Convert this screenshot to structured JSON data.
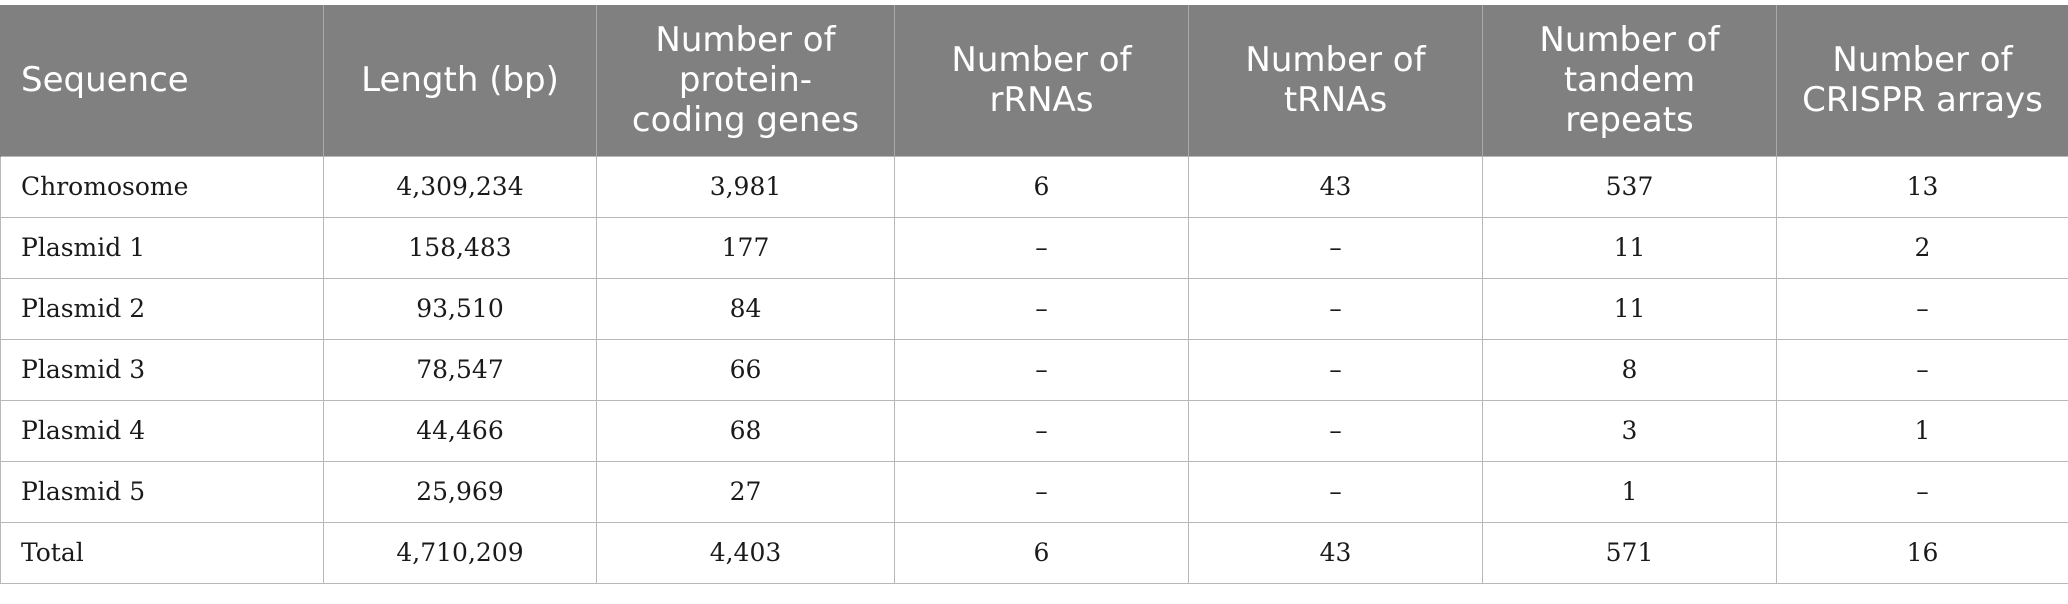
{
  "table": {
    "headers": [
      [
        "Sequence"
      ],
      [
        "Length (bp)"
      ],
      [
        "Number of",
        "protein-",
        "coding genes"
      ],
      [
        "Number of",
        "rRNAs"
      ],
      [
        "Number of",
        "tRNAs"
      ],
      [
        "Number of",
        "tandem",
        "repeats"
      ],
      [
        "Number of",
        "CRISPR arrays"
      ]
    ],
    "rows": [
      [
        "Chromosome",
        "4,309,234",
        "3,981",
        "6",
        "43",
        "537",
        "13"
      ],
      [
        "Plasmid 1",
        "158,483",
        "177",
        "–",
        "–",
        "11",
        "2"
      ],
      [
        "Plasmid 2",
        "93,510",
        "84",
        "–",
        "–",
        "11",
        "–"
      ],
      [
        "Plasmid 3",
        "78,547",
        "66",
        "–",
        "–",
        "8",
        "–"
      ],
      [
        "Plasmid 4",
        "44,466",
        "68",
        "–",
        "–",
        "3",
        "1"
      ],
      [
        "Plasmid 5",
        "25,969",
        "27",
        "–",
        "–",
        "1",
        "–"
      ],
      [
        "Total",
        "4,710,209",
        "4,403",
        "6",
        "43",
        "571",
        "16"
      ]
    ]
  },
  "colors": {
    "header_background": "#808080",
    "header_text": "#ffffff",
    "body_text": "#1a1a1a",
    "grid_lines": "#b8b8b8"
  }
}
